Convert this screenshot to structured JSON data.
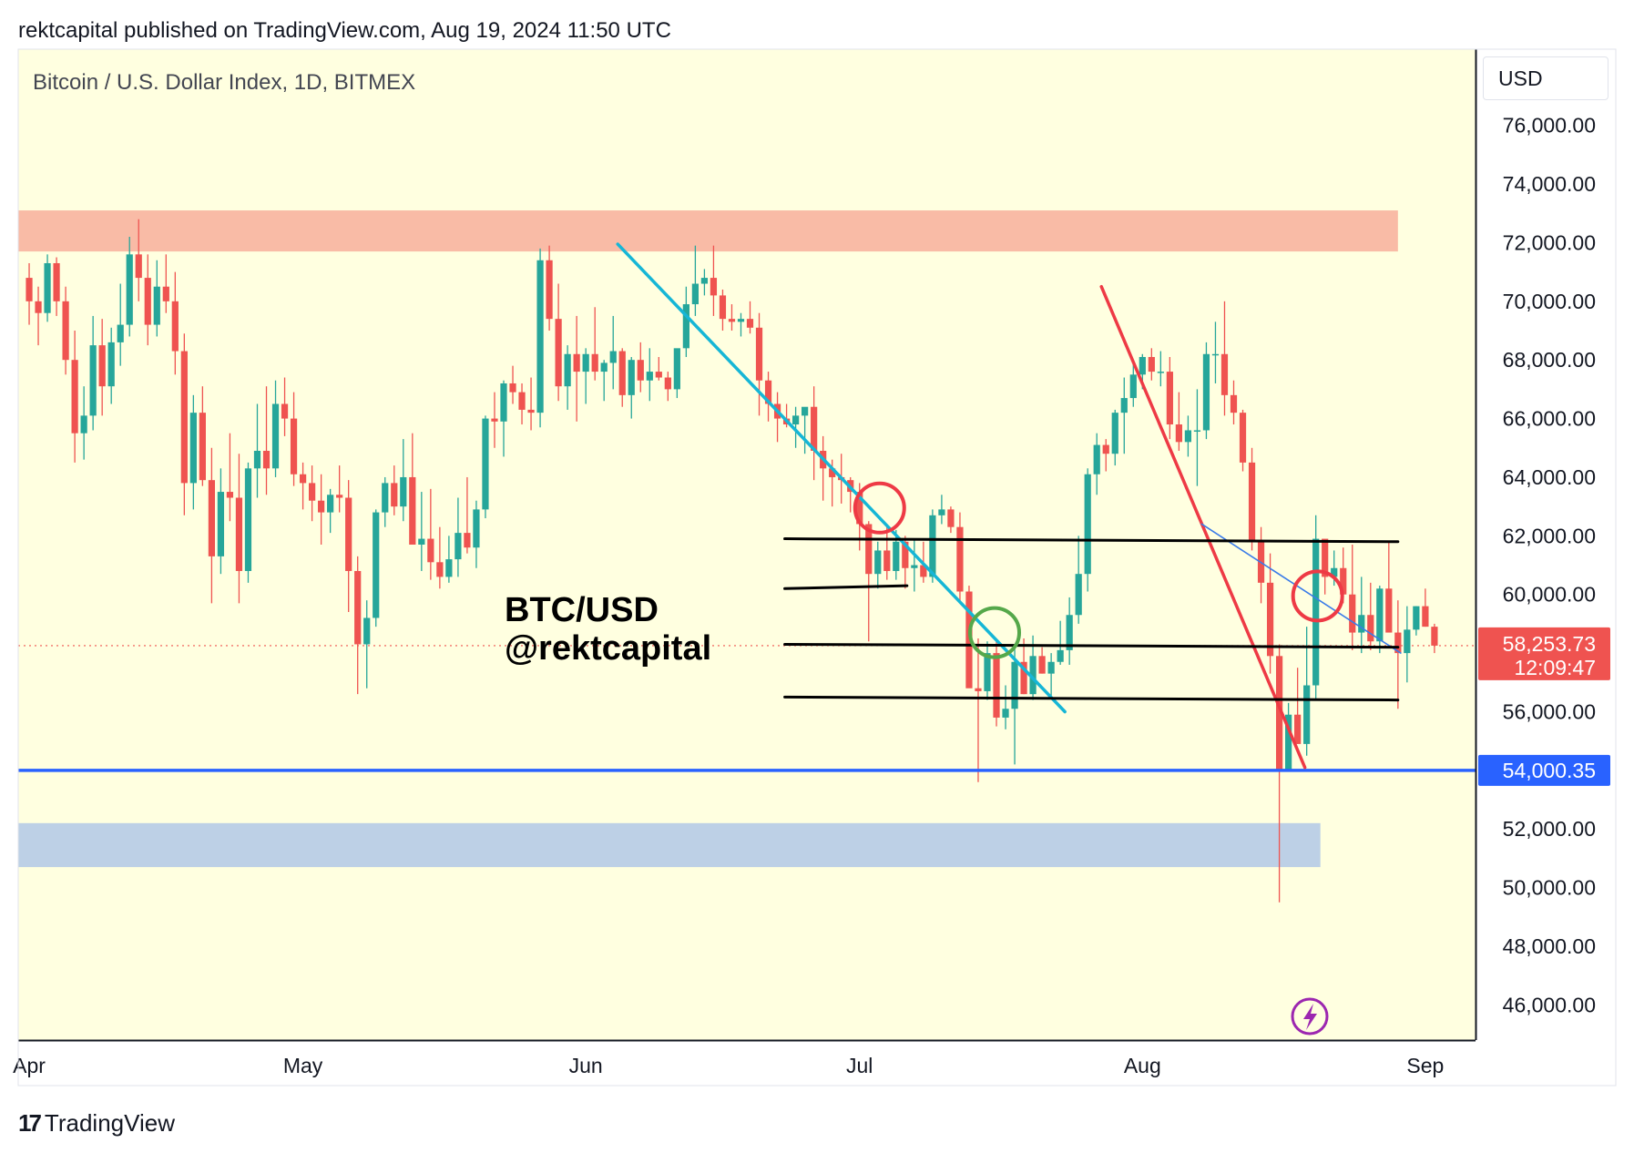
{
  "header": {
    "published": "rektcapital published on TradingView.com, Aug 19, 2024 11:50 UTC"
  },
  "footer": {
    "brand": "TradingView",
    "logo_text": "17"
  },
  "currency_button": "USD",
  "colors": {
    "background": "#ffffe0",
    "bull": "#26a69a",
    "bear": "#ef5350",
    "resistance_zone": "#f9bba6",
    "support_zone": "#bdd0e6",
    "support_line": "#2962ff",
    "trend_cyan": "#16b6d6",
    "trend_red": "#ee3a45",
    "trend_blue_thin": "#3a7be8",
    "circle_red": "#ee3a45",
    "circle_green": "#55a84a",
    "horizontal_black": "#000000"
  },
  "chart_data": {
    "type": "candlestick",
    "title": "Bitcoin / U.S. Dollar Index, 1D, BITMEX",
    "watermark_lines": [
      "BTC/USD",
      "@rektcapital"
    ],
    "x_ticks": [
      "Apr",
      "May",
      "Jun",
      "Jul",
      "Aug",
      "Sep"
    ],
    "y_ticks": [
      46000,
      48000,
      50000,
      52000,
      54000,
      56000,
      58000,
      60000,
      62000,
      64000,
      66000,
      68000,
      70000,
      72000,
      74000,
      76000
    ],
    "y_tick_labels": [
      "46,000.00",
      "48,000.00",
      "50,000.00",
      "52,000.00",
      "54,000.00",
      "56,000.00",
      "58,000.00",
      "60,000.00",
      "62,000.00",
      "64,000.00",
      "66,000.00",
      "68,000.00",
      "70,000.00",
      "72,000.00",
      "74,000.00",
      "76,000.00"
    ],
    "ylim": [
      44800,
      78600
    ],
    "xlim_days": [
      -1.2,
      158.5
    ],
    "x_tick_days": [
      0,
      30,
      61,
      91,
      122,
      153
    ],
    "candles": [
      [
        70800,
        71300,
        69200,
        70000
      ],
      [
        70000,
        70500,
        68500,
        69600
      ],
      [
        69600,
        71600,
        69300,
        71300
      ],
      [
        71300,
        71500,
        69500,
        70000
      ],
      [
        70000,
        70500,
        67500,
        68000
      ],
      [
        68000,
        69000,
        64500,
        65500
      ],
      [
        65500,
        67100,
        64600,
        66100
      ],
      [
        66100,
        69500,
        65600,
        68500
      ],
      [
        68500,
        69400,
        66100,
        67100
      ],
      [
        67100,
        69100,
        66500,
        68600
      ],
      [
        68600,
        70600,
        67800,
        69200
      ],
      [
        69200,
        72200,
        68800,
        71600
      ],
      [
        71600,
        72800,
        70000,
        70800
      ],
      [
        70800,
        71600,
        68500,
        69200
      ],
      [
        69200,
        71400,
        68800,
        70500
      ],
      [
        70500,
        71600,
        69600,
        70000
      ],
      [
        70000,
        71000,
        67500,
        68300
      ],
      [
        68300,
        68900,
        62700,
        63800
      ],
      [
        63800,
        66800,
        62900,
        66200
      ],
      [
        66200,
        67100,
        63700,
        63900
      ],
      [
        63900,
        65000,
        59700,
        61300
      ],
      [
        61300,
        64300,
        60700,
        63500
      ],
      [
        63500,
        65500,
        62500,
        63300
      ],
      [
        63300,
        64800,
        59700,
        60800
      ],
      [
        60800,
        64500,
        60400,
        64300
      ],
      [
        64300,
        66500,
        63300,
        64900
      ],
      [
        64900,
        67100,
        63400,
        64300
      ],
      [
        64300,
        67300,
        64000,
        66500
      ],
      [
        66500,
        67400,
        65400,
        66000
      ],
      [
        66000,
        66900,
        63700,
        64100
      ],
      [
        64100,
        64500,
        62900,
        63800
      ],
      [
        63800,
        64400,
        62500,
        63200
      ],
      [
        63200,
        64100,
        61700,
        62800
      ],
      [
        62800,
        63600,
        62100,
        63400
      ],
      [
        63400,
        64400,
        62800,
        63300
      ],
      [
        63300,
        63900,
        59400,
        60800
      ],
      [
        60800,
        61300,
        56600,
        58300
      ],
      [
        58300,
        59800,
        56800,
        59200
      ],
      [
        59200,
        62900,
        58900,
        62800
      ],
      [
        62800,
        64000,
        62300,
        63800
      ],
      [
        63800,
        64400,
        62700,
        63000
      ],
      [
        63000,
        65300,
        62500,
        64000
      ],
      [
        64000,
        65500,
        61800,
        61700
      ],
      [
        61700,
        63500,
        60800,
        61900
      ],
      [
        61900,
        63600,
        60500,
        61100
      ],
      [
        61100,
        62300,
        60200,
        60600
      ],
      [
        60600,
        62000,
        60400,
        61200
      ],
      [
        61200,
        63300,
        60600,
        62100
      ],
      [
        62100,
        64000,
        61400,
        61600
      ],
      [
        61600,
        63200,
        60900,
        62900
      ],
      [
        62900,
        66100,
        62600,
        66000
      ],
      [
        66000,
        66900,
        65000,
        65900
      ],
      [
        65900,
        67300,
        64700,
        67200
      ],
      [
        67200,
        67800,
        66500,
        66900
      ],
      [
        66900,
        67200,
        65800,
        66300
      ],
      [
        66300,
        67400,
        65600,
        66200
      ],
      [
        66200,
        71800,
        65700,
        71400
      ],
      [
        71400,
        71900,
        69000,
        69400
      ],
      [
        69400,
        70600,
        66600,
        67100
      ],
      [
        67100,
        68500,
        66300,
        68200
      ],
      [
        68200,
        69500,
        65900,
        67600
      ],
      [
        67600,
        68400,
        66500,
        68200
      ],
      [
        68200,
        69800,
        67300,
        67600
      ],
      [
        67600,
        68000,
        66600,
        67900
      ],
      [
        67900,
        69500,
        67000,
        68300
      ],
      [
        68300,
        68400,
        66400,
        66800
      ],
      [
        66800,
        68100,
        66000,
        68000
      ],
      [
        68000,
        68600,
        66900,
        67300
      ],
      [
        67300,
        68400,
        66600,
        67600
      ],
      [
        67600,
        68100,
        67300,
        67400
      ],
      [
        67400,
        67600,
        66600,
        67000
      ],
      [
        67000,
        68300,
        66700,
        68400
      ],
      [
        68400,
        70500,
        68100,
        69900
      ],
      [
        69900,
        71900,
        69500,
        70600
      ],
      [
        70600,
        71100,
        70200,
        70800
      ],
      [
        70800,
        71900,
        69500,
        70200
      ],
      [
        70200,
        70400,
        69000,
        69400
      ],
      [
        69400,
        69900,
        69000,
        69300
      ],
      [
        69300,
        69600,
        68800,
        69400
      ],
      [
        69400,
        70000,
        68900,
        69100
      ],
      [
        69100,
        69600,
        66100,
        67300
      ],
      [
        67300,
        67600,
        65900,
        66500
      ],
      [
        66500,
        66900,
        65200,
        66000
      ],
      [
        66000,
        66500,
        65700,
        65800
      ],
      [
        65800,
        66400,
        65000,
        66100
      ],
      [
        66100,
        66300,
        64800,
        66400
      ],
      [
        66400,
        67100,
        63900,
        64900
      ],
      [
        64900,
        65400,
        63200,
        64300
      ],
      [
        64300,
        64600,
        63000,
        64000
      ],
      [
        64000,
        64800,
        63100,
        63900
      ],
      [
        63900,
        64000,
        62800,
        63500
      ],
      [
        63500,
        63800,
        61500,
        62400
      ],
      [
        62400,
        62500,
        58400,
        60700
      ],
      [
        60700,
        61800,
        60200,
        61500
      ],
      [
        61500,
        62300,
        60500,
        60800
      ],
      [
        60800,
        62200,
        60500,
        61800
      ],
      [
        61800,
        62000,
        60200,
        60900
      ],
      [
        60900,
        61900,
        60100,
        61000
      ],
      [
        61000,
        61800,
        60400,
        60600
      ],
      [
        60600,
        62900,
        60400,
        62700
      ],
      [
        62700,
        63400,
        62400,
        62900
      ],
      [
        62900,
        63000,
        62100,
        62300
      ],
      [
        62300,
        62800,
        59700,
        60100
      ],
      [
        60100,
        60300,
        56900,
        56800
      ],
      [
        56800,
        58500,
        53600,
        56700
      ],
      [
        56700,
        58400,
        56400,
        58000
      ],
      [
        58000,
        58500,
        55500,
        55800
      ],
      [
        55800,
        56900,
        55400,
        56100
      ],
      [
        56100,
        58300,
        54200,
        57700
      ],
      [
        57700,
        58500,
        56600,
        56600
      ],
      [
        56600,
        58600,
        56400,
        57900
      ],
      [
        57900,
        58200,
        57300,
        57300
      ],
      [
        57300,
        58000,
        56500,
        57700
      ],
      [
        57700,
        59100,
        57600,
        58100
      ],
      [
        58100,
        59900,
        57600,
        59300
      ],
      [
        59300,
        62000,
        59000,
        60700
      ],
      [
        60700,
        64300,
        60100,
        64100
      ],
      [
        64100,
        65500,
        63400,
        65100
      ],
      [
        65100,
        65300,
        64200,
        64800
      ],
      [
        64800,
        66300,
        64400,
        66200
      ],
      [
        66200,
        67400,
        64800,
        66700
      ],
      [
        66700,
        68000,
        66400,
        67500
      ],
      [
        67500,
        68200,
        67000,
        68100
      ],
      [
        68100,
        68400,
        67300,
        67600
      ],
      [
        67600,
        68300,
        67100,
        67600
      ],
      [
        67600,
        68100,
        65300,
        65800
      ],
      [
        65800,
        66900,
        64900,
        65200
      ],
      [
        65200,
        66100,
        64700,
        65600
      ],
      [
        65600,
        67000,
        63700,
        65600
      ],
      [
        65600,
        68600,
        65300,
        68200
      ],
      [
        68200,
        69300,
        67200,
        68200
      ],
      [
        68200,
        70000,
        66100,
        66800
      ],
      [
        66800,
        67300,
        65800,
        66200
      ],
      [
        66200,
        66300,
        64200,
        64500
      ],
      [
        64500,
        65000,
        61500,
        61800
      ],
      [
        61800,
        62300,
        59700,
        60400
      ],
      [
        60400,
        61400,
        57300,
        57900
      ],
      [
        57900,
        58300,
        49500,
        54000
      ],
      [
        54000,
        56300,
        54000,
        55900
      ],
      [
        55900,
        57500,
        54900,
        54900
      ],
      [
        54900,
        58900,
        54500,
        56900
      ],
      [
        56900,
        62700,
        56400,
        61900
      ],
      [
        61900,
        61600,
        60000,
        60600
      ],
      [
        60600,
        61500,
        60300,
        60900
      ],
      [
        60900,
        61600,
        59700,
        60000
      ],
      [
        60000,
        61700,
        58100,
        58700
      ],
      [
        58700,
        60600,
        58000,
        59300
      ],
      [
        59300,
        60400,
        58100,
        58400
      ],
      [
        58400,
        60300,
        58000,
        60200
      ],
      [
        60200,
        61800,
        58900,
        58700
      ],
      [
        58700,
        59800,
        56100,
        58000
      ],
      [
        58000,
        59600,
        57000,
        58800
      ],
      [
        58800,
        59600,
        58600,
        59600
      ],
      [
        59600,
        60200,
        58900,
        58900
      ],
      [
        58900,
        59000,
        58000,
        58254
      ]
    ],
    "zones": [
      {
        "name": "resistance",
        "from": 71700,
        "to": 73100,
        "start_day": -1.2,
        "end_day": 150
      },
      {
        "name": "support",
        "from": 50700,
        "to": 52200,
        "start_day": -1.2,
        "end_day": 141.5
      }
    ],
    "support_line": {
      "value": 54000.35,
      "label": "54,000.35"
    },
    "last_price": {
      "value": 58253.73,
      "label": "58,253.73",
      "countdown": "12:09:47"
    },
    "lines": [
      {
        "name": "cyan-downtrend",
        "color": "trend_cyan",
        "points": [
          [
            64.5,
            71950
          ],
          [
            113.5,
            56000
          ]
        ],
        "width": 3.5
      },
      {
        "name": "red-downtrend",
        "color": "trend_red",
        "points": [
          [
            117.5,
            70500
          ],
          [
            139.8,
            54100
          ]
        ],
        "width": 3.5
      },
      {
        "name": "blue-thin-downtrend",
        "color": "trend_blue_thin",
        "points": [
          [
            128.5,
            62400
          ],
          [
            150.3,
            58000
          ]
        ],
        "width": 1.6
      },
      {
        "name": "range-high",
        "color": "horizontal_black",
        "points": [
          [
            82.8,
            61900
          ],
          [
            150,
            61800
          ]
        ],
        "width": 3
      },
      {
        "name": "range-high-short",
        "color": "horizontal_black",
        "points": [
          [
            82.8,
            60200
          ],
          [
            96.2,
            60300
          ]
        ],
        "width": 3
      },
      {
        "name": "range-mid",
        "color": "horizontal_black",
        "points": [
          [
            82.8,
            58300
          ],
          [
            150,
            58200
          ]
        ],
        "width": 3
      },
      {
        "name": "range-low",
        "color": "horizontal_black",
        "points": [
          [
            82.8,
            56500
          ],
          [
            150,
            56400
          ]
        ],
        "width": 3
      }
    ],
    "circles": [
      {
        "name": "rejection-circle-jul",
        "color": "circle_red",
        "day": 93.2,
        "value": 62950
      },
      {
        "name": "reclaim-circle-jul",
        "color": "circle_green",
        "day": 105.8,
        "value": 58700
      },
      {
        "name": "rejection-circle-aug",
        "color": "circle_red",
        "day": 141.2,
        "value": 59950
      }
    ]
  }
}
